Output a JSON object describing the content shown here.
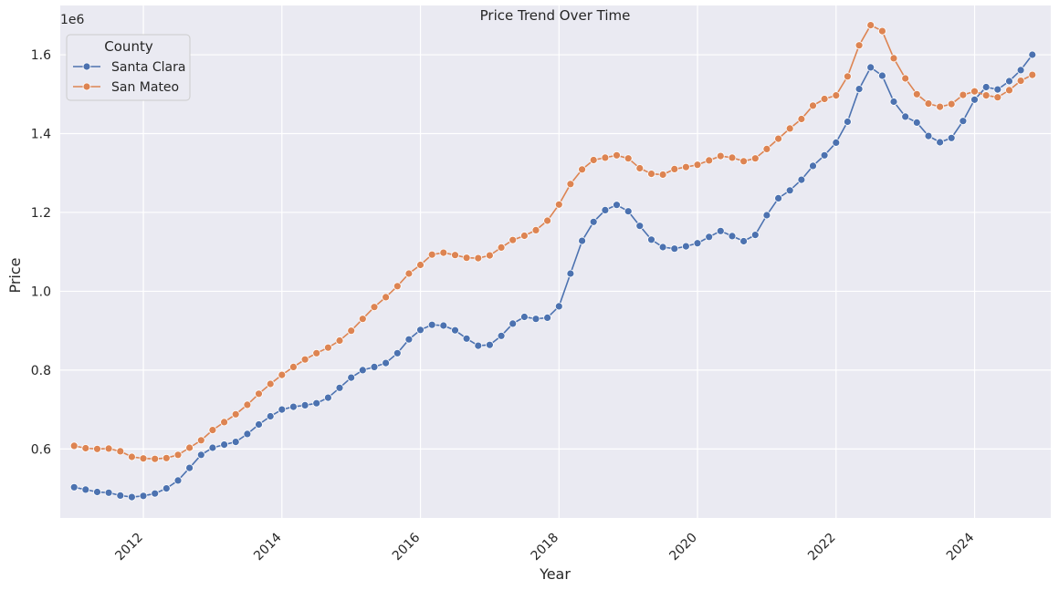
{
  "chart_data": {
    "type": "line",
    "title": "Price Trend Over Time",
    "xlabel": "Year",
    "ylabel": "Price",
    "y_offset_label": "1e6",
    "xlim": [
      2010.8,
      2025.1
    ],
    "ylim": [
      425000,
      1725000
    ],
    "xticks": [
      2012,
      2014,
      2016,
      2018,
      2020,
      2022,
      2024
    ],
    "yticks": [
      600000,
      800000,
      1000000,
      1200000,
      1400000,
      1600000
    ],
    "ytick_labels": [
      "0.6",
      "0.8",
      "1.0",
      "1.2",
      "1.4",
      "1.6"
    ],
    "grid": true,
    "legend": {
      "title": "County",
      "placement": "top-left"
    },
    "colors": {
      "Santa Clara": "#4c72b0",
      "San Mateo": "#dd8452",
      "background": "#eaeaf2",
      "grid": "#ffffff"
    },
    "series": [
      {
        "name": "Santa Clara",
        "color": "#4c72b0",
        "marker": "circle",
        "points": [
          [
            "2011-01",
            503000
          ],
          [
            "2011-03",
            497000
          ],
          [
            "2011-05",
            491000
          ],
          [
            "2011-07",
            489000
          ],
          [
            "2011-09",
            482000
          ],
          [
            "2011-11",
            478000
          ],
          [
            "2012-01",
            481000
          ],
          [
            "2012-03",
            487000
          ],
          [
            "2012-05",
            500000
          ],
          [
            "2012-07",
            520000
          ],
          [
            "2012-09",
            552000
          ],
          [
            "2012-11",
            585000
          ],
          [
            "2013-01",
            603000
          ],
          [
            "2013-03",
            611000
          ],
          [
            "2013-05",
            618000
          ],
          [
            "2013-07",
            638000
          ],
          [
            "2013-09",
            662000
          ],
          [
            "2013-11",
            683000
          ],
          [
            "2014-01",
            700000
          ],
          [
            "2014-03",
            707000
          ],
          [
            "2014-05",
            711000
          ],
          [
            "2014-07",
            716000
          ],
          [
            "2014-09",
            730000
          ],
          [
            "2014-11",
            755000
          ],
          [
            "2015-01",
            781000
          ],
          [
            "2015-03",
            800000
          ],
          [
            "2015-05",
            808000
          ],
          [
            "2015-07",
            818000
          ],
          [
            "2015-09",
            843000
          ],
          [
            "2015-11",
            878000
          ],
          [
            "2016-01",
            902000
          ],
          [
            "2016-03",
            915000
          ],
          [
            "2016-05",
            913000
          ],
          [
            "2016-07",
            901000
          ],
          [
            "2016-09",
            880000
          ],
          [
            "2016-11",
            862000
          ],
          [
            "2017-01",
            864000
          ],
          [
            "2017-03",
            887000
          ],
          [
            "2017-05",
            918000
          ],
          [
            "2017-07",
            935000
          ],
          [
            "2017-09",
            930000
          ],
          [
            "2017-11",
            933000
          ],
          [
            "2018-01",
            962000
          ],
          [
            "2018-03",
            1045000
          ],
          [
            "2018-05",
            1128000
          ],
          [
            "2018-07",
            1176000
          ],
          [
            "2018-09",
            1206000
          ],
          [
            "2018-11",
            1219000
          ],
          [
            "2019-01",
            1203000
          ],
          [
            "2019-03",
            1166000
          ],
          [
            "2019-05",
            1131000
          ],
          [
            "2019-07",
            1112000
          ],
          [
            "2019-09",
            1108000
          ],
          [
            "2019-11",
            1114000
          ],
          [
            "2020-01",
            1122000
          ],
          [
            "2020-03",
            1138000
          ],
          [
            "2020-05",
            1153000
          ],
          [
            "2020-07",
            1140000
          ],
          [
            "2020-09",
            1127000
          ],
          [
            "2020-11",
            1143000
          ],
          [
            "2021-01",
            1193000
          ],
          [
            "2021-03",
            1236000
          ],
          [
            "2021-05",
            1256000
          ],
          [
            "2021-07",
            1283000
          ],
          [
            "2021-09",
            1318000
          ],
          [
            "2021-11",
            1345000
          ],
          [
            "2022-01",
            1377000
          ],
          [
            "2022-03",
            1430000
          ],
          [
            "2022-05",
            1513000
          ],
          [
            "2022-07",
            1568000
          ],
          [
            "2022-09",
            1547000
          ],
          [
            "2022-11",
            1481000
          ],
          [
            "2023-01",
            1443000
          ],
          [
            "2023-03",
            1428000
          ],
          [
            "2023-05",
            1394000
          ],
          [
            "2023-07",
            1378000
          ],
          [
            "2023-09",
            1389000
          ],
          [
            "2023-11",
            1432000
          ],
          [
            "2024-01",
            1486000
          ],
          [
            "2024-03",
            1518000
          ],
          [
            "2024-05",
            1512000
          ],
          [
            "2024-07",
            1533000
          ],
          [
            "2024-09",
            1561000
          ],
          [
            "2024-11",
            1600000
          ]
        ]
      },
      {
        "name": "San Mateo",
        "color": "#dd8452",
        "marker": "circle",
        "points": [
          [
            "2011-01",
            608000
          ],
          [
            "2011-03",
            602000
          ],
          [
            "2011-05",
            600000
          ],
          [
            "2011-07",
            601000
          ],
          [
            "2011-09",
            594000
          ],
          [
            "2011-11",
            580000
          ],
          [
            "2012-01",
            576000
          ],
          [
            "2012-03",
            575000
          ],
          [
            "2012-05",
            577000
          ],
          [
            "2012-07",
            585000
          ],
          [
            "2012-09",
            603000
          ],
          [
            "2012-11",
            622000
          ],
          [
            "2013-01",
            648000
          ],
          [
            "2013-03",
            668000
          ],
          [
            "2013-05",
            688000
          ],
          [
            "2013-07",
            712000
          ],
          [
            "2013-09",
            740000
          ],
          [
            "2013-11",
            765000
          ],
          [
            "2014-01",
            788000
          ],
          [
            "2014-03",
            808000
          ],
          [
            "2014-05",
            827000
          ],
          [
            "2014-07",
            843000
          ],
          [
            "2014-09",
            857000
          ],
          [
            "2014-11",
            875000
          ],
          [
            "2015-01",
            900000
          ],
          [
            "2015-03",
            930000
          ],
          [
            "2015-05",
            960000
          ],
          [
            "2015-07",
            985000
          ],
          [
            "2015-09",
            1013000
          ],
          [
            "2015-11",
            1045000
          ],
          [
            "2016-01",
            1067000
          ],
          [
            "2016-03",
            1093000
          ],
          [
            "2016-05",
            1098000
          ],
          [
            "2016-07",
            1092000
          ],
          [
            "2016-09",
            1085000
          ],
          [
            "2016-11",
            1084000
          ],
          [
            "2017-01",
            1091000
          ],
          [
            "2017-03",
            1111000
          ],
          [
            "2017-05",
            1130000
          ],
          [
            "2017-07",
            1141000
          ],
          [
            "2017-09",
            1155000
          ],
          [
            "2017-11",
            1179000
          ],
          [
            "2018-01",
            1220000
          ],
          [
            "2018-03",
            1272000
          ],
          [
            "2018-05",
            1309000
          ],
          [
            "2018-07",
            1333000
          ],
          [
            "2018-09",
            1339000
          ],
          [
            "2018-11",
            1345000
          ],
          [
            "2019-01",
            1337000
          ],
          [
            "2019-03",
            1312000
          ],
          [
            "2019-05",
            1298000
          ],
          [
            "2019-07",
            1296000
          ],
          [
            "2019-09",
            1310000
          ],
          [
            "2019-11",
            1315000
          ],
          [
            "2020-01",
            1321000
          ],
          [
            "2020-03",
            1332000
          ],
          [
            "2020-05",
            1343000
          ],
          [
            "2020-07",
            1339000
          ],
          [
            "2020-09",
            1330000
          ],
          [
            "2020-11",
            1337000
          ],
          [
            "2021-01",
            1361000
          ],
          [
            "2021-03",
            1387000
          ],
          [
            "2021-05",
            1413000
          ],
          [
            "2021-07",
            1437000
          ],
          [
            "2021-09",
            1471000
          ],
          [
            "2021-11",
            1488000
          ],
          [
            "2022-01",
            1497000
          ],
          [
            "2022-03",
            1545000
          ],
          [
            "2022-05",
            1624000
          ],
          [
            "2022-07",
            1675000
          ],
          [
            "2022-09",
            1660000
          ],
          [
            "2022-11",
            1591000
          ],
          [
            "2023-01",
            1540000
          ],
          [
            "2023-03",
            1500000
          ],
          [
            "2023-05",
            1476000
          ],
          [
            "2023-07",
            1468000
          ],
          [
            "2023-09",
            1475000
          ],
          [
            "2023-11",
            1498000
          ],
          [
            "2024-01",
            1507000
          ],
          [
            "2024-03",
            1497000
          ],
          [
            "2024-05",
            1492000
          ],
          [
            "2024-07",
            1510000
          ],
          [
            "2024-09",
            1534000
          ],
          [
            "2024-11",
            1549000
          ]
        ]
      }
    ]
  }
}
